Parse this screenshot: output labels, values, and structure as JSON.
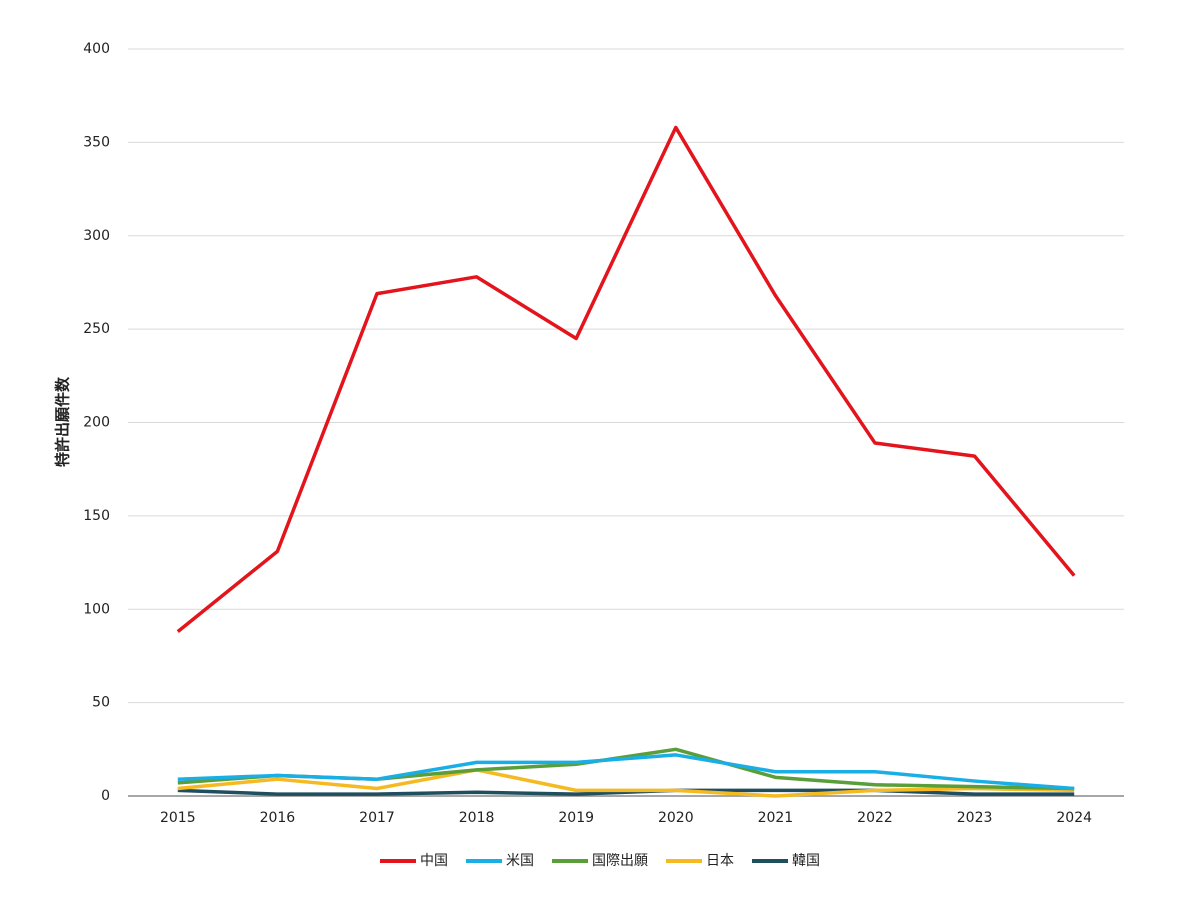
{
  "chart_data": {
    "type": "line",
    "y_label": "特許出願件数",
    "categories": [
      "2015",
      "2016",
      "2017",
      "2018",
      "2019",
      "2020",
      "2021",
      "2022",
      "2023",
      "2024"
    ],
    "series": [
      {
        "name": "中国",
        "color": "#e3141c",
        "values": [
          88,
          131,
          269,
          278,
          245,
          358,
          268,
          189,
          182,
          118
        ]
      },
      {
        "name": "米国",
        "color": "#1aaee6",
        "values": [
          9,
          11,
          9,
          18,
          18,
          22,
          13,
          13,
          8,
          4
        ]
      },
      {
        "name": "国際出願",
        "color": "#5a9e3a",
        "values": [
          7,
          11,
          9,
          14,
          17,
          25,
          10,
          6,
          5,
          4
        ]
      },
      {
        "name": "日本",
        "color": "#f5b921",
        "values": [
          4,
          9,
          4,
          14,
          3,
          3,
          0,
          3,
          4,
          3
        ]
      },
      {
        "name": "韓国",
        "color": "#1f4e5f",
        "values": [
          3,
          1,
          1,
          2,
          1,
          3,
          3,
          3,
          1,
          1
        ]
      }
    ],
    "ylim": [
      0,
      400
    ],
    "yticks": [
      0,
      50,
      100,
      150,
      200,
      250,
      300,
      350,
      400
    ],
    "grid": true,
    "legend": "bottom"
  }
}
